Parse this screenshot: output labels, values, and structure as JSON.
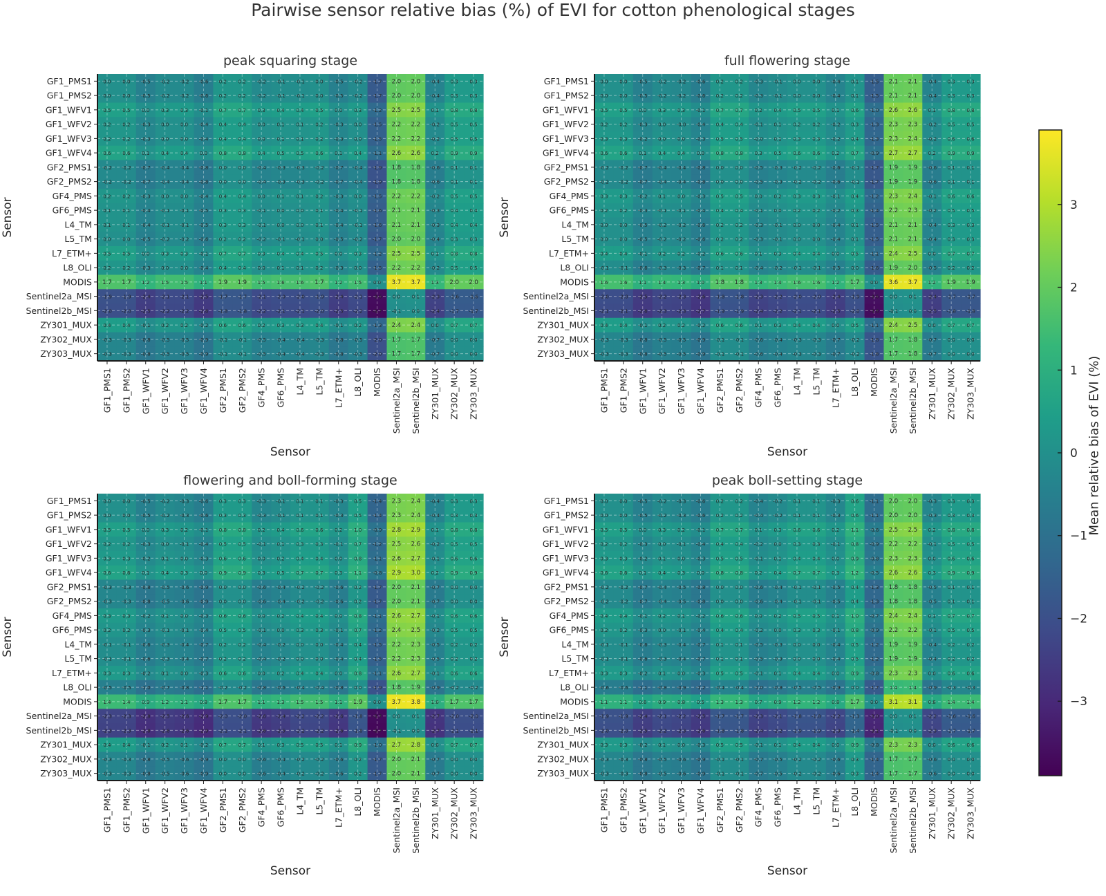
{
  "suptitle": "Pairwise sensor relative bias (%) of EVI for cotton phenological stages",
  "chart_data": {
    "type": "heatmap",
    "title": "Pairwise sensor relative bias (%) of EVI for cotton phenological stages",
    "xlabel": "Sensor",
    "ylabel": "Sensor",
    "sensors": [
      "GF1_PMS1",
      "GF1_PMS2",
      "GF1_WFV1",
      "GF1_WFV2",
      "GF1_WFV3",
      "GF1_WFV4",
      "GF2_PMS1",
      "GF2_PMS2",
      "GF4_PMS",
      "GF6_PMS",
      "L4_TM",
      "L5_TM",
      "L7_ETM+",
      "L8_OLI",
      "MODIS",
      "Sentinel2a_MSI",
      "Sentinel2b_MSI",
      "ZY301_MUX",
      "ZY302_MUX",
      "ZY303_MUX"
    ],
    "colorbar": {
      "label": "Mean relative bias of EVI (%)",
      "colormap": "viridis",
      "vmin": -3.9,
      "vmax": 3.9,
      "ticks": [
        -3,
        -2,
        -1,
        0,
        1,
        2,
        3
      ],
      "tick_labels": [
        "−3",
        "−2",
        "−1",
        "0",
        "1",
        "2",
        "3"
      ]
    },
    "grid": true,
    "annotations": "cell values, 1 decimal",
    "panels": [
      {
        "title": "peak squaring stage",
        "row_offsets": [
          0.0,
          0.0,
          0.5,
          0.2,
          0.2,
          0.6,
          -0.2,
          -0.2,
          0.2,
          0.1,
          0.1,
          0.0,
          0.5,
          0.2,
          1.7,
          -1.95,
          -2.0,
          0.4,
          -0.3,
          -0.3
        ]
      },
      {
        "title": "full flowering stage",
        "row_offsets": [
          0.0,
          0.0,
          0.5,
          0.2,
          0.25,
          0.6,
          -0.2,
          -0.2,
          0.3,
          0.15,
          0.0,
          0.0,
          0.4,
          -0.1,
          1.55,
          -2.05,
          -2.1,
          0.4,
          -0.3,
          -0.3
        ]
      },
      {
        "title": "flowering and boll-forming stage",
        "row_offsets": [
          0.0,
          0.0,
          0.5,
          0.2,
          0.3,
          0.6,
          -0.3,
          -0.3,
          0.3,
          0.15,
          -0.1,
          -0.1,
          0.3,
          -0.5,
          1.4,
          -2.3,
          -2.35,
          0.4,
          -0.3,
          -0.3
        ]
      },
      {
        "title": "peak boll-setting stage",
        "row_offsets": [
          0.0,
          0.0,
          0.5,
          0.2,
          0.3,
          0.6,
          -0.2,
          -0.2,
          0.4,
          0.2,
          -0.1,
          -0.1,
          0.3,
          -0.6,
          1.1,
          -1.95,
          -2.0,
          0.3,
          -0.3,
          -0.3
        ]
      }
    ],
    "value_rule": "value[row][col] = row_offsets[row] - row_offsets[col]"
  }
}
